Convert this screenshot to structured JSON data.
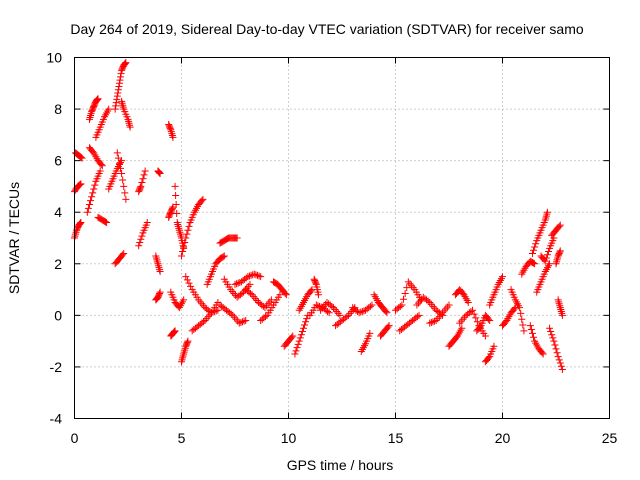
{
  "chart_data": {
    "type": "scatter",
    "title": "Day 264 of 2019, Sidereal Day-to-day VTEC variation (SDTVAR) for receiver samo",
    "xlabel": "GPS time / hours",
    "ylabel": "SDTVAR / TECUs",
    "xlim": [
      0,
      25
    ],
    "ylim": [
      -4,
      10
    ],
    "xticks": [
      0,
      5,
      10,
      15,
      20,
      25
    ],
    "yticks": [
      -4,
      -2,
      0,
      2,
      4,
      6,
      8,
      10
    ],
    "xtick_labels": [
      "0",
      "5",
      "10",
      "15",
      "20",
      "25"
    ],
    "ytick_labels": [
      "-4",
      "-2",
      "0",
      "2",
      "4",
      "6",
      "8",
      "10"
    ],
    "grid": true,
    "marker": "+",
    "color": "#ff0000",
    "series": [
      {
        "name": "SDTVAR",
        "segments": [
          {
            "x": [
              0.0,
              0.1,
              0.2,
              0.3
            ],
            "y": [
              3.0,
              3.3,
              3.5,
              3.6
            ]
          },
          {
            "x": [
              0.0,
              0.15,
              0.3
            ],
            "y": [
              4.8,
              5.0,
              5.1
            ]
          },
          {
            "x": [
              0.05,
              0.2,
              0.35
            ],
            "y": [
              6.3,
              6.2,
              6.1
            ]
          },
          {
            "x": [
              0.7,
              0.8,
              0.9,
              1.0,
              1.1
            ],
            "y": [
              7.6,
              7.9,
              8.1,
              8.3,
              8.4
            ]
          },
          {
            "x": [
              0.6,
              0.8,
              1.0,
              1.2
            ],
            "y": [
              4.0,
              4.6,
              5.2,
              5.6
            ]
          },
          {
            "x": [
              0.7,
              0.9,
              1.1,
              1.3
            ],
            "y": [
              6.5,
              6.3,
              6.0,
              5.8
            ]
          },
          {
            "x": [
              1.0,
              1.2,
              1.4,
              1.6
            ],
            "y": [
              6.9,
              7.3,
              7.7,
              8.0
            ]
          },
          {
            "x": [
              1.1,
              1.3,
              1.5
            ],
            "y": [
              3.8,
              3.7,
              3.6
            ]
          },
          {
            "x": [
              1.6,
              1.8,
              2.0,
              2.2
            ],
            "y": [
              4.9,
              5.3,
              5.7,
              6.0
            ]
          },
          {
            "x": [
              1.9,
              2.0,
              2.1,
              2.2,
              2.3,
              2.4
            ],
            "y": [
              8.0,
              8.5,
              9.0,
              9.5,
              9.7,
              9.8
            ]
          },
          {
            "x": [
              2.2,
              2.3,
              2.5,
              2.6
            ],
            "y": [
              8.3,
              8.0,
              7.6,
              7.3
            ]
          },
          {
            "x": [
              1.9,
              2.1,
              2.3
            ],
            "y": [
              2.0,
              2.2,
              2.4
            ]
          },
          {
            "x": [
              2.0,
              2.2,
              2.4
            ],
            "y": [
              6.3,
              5.5,
              4.5
            ]
          },
          {
            "x": [
              3.0,
              3.2,
              3.4
            ],
            "y": [
              2.7,
              3.2,
              3.6
            ]
          },
          {
            "x": [
              3.0,
              3.1,
              3.3
            ],
            "y": [
              4.8,
              5.0,
              5.6
            ]
          },
          {
            "x": [
              3.8,
              3.9,
              4.0
            ],
            "y": [
              2.3,
              2.0,
              1.7
            ]
          },
          {
            "x": [
              3.8,
              3.9,
              4.0
            ],
            "y": [
              0.6,
              0.7,
              0.9
            ]
          },
          {
            "x": [
              3.9,
              4.0
            ],
            "y": [
              5.6,
              5.5
            ]
          },
          {
            "x": [
              4.4,
              4.5,
              4.6
            ],
            "y": [
              7.4,
              7.2,
              6.9
            ]
          },
          {
            "x": [
              4.5,
              4.7,
              4.9,
              5.1
            ],
            "y": [
              0.9,
              0.5,
              0.3,
              0.6
            ]
          },
          {
            "x": [
              4.4,
              4.5,
              4.6
            ],
            "y": [
              3.8,
              4.0,
              4.2
            ]
          },
          {
            "x": [
              4.5,
              4.6,
              4.7
            ],
            "y": [
              -0.8,
              -0.7,
              -0.6
            ]
          },
          {
            "x": [
              4.7,
              4.8,
              4.9,
              5.0,
              5.1
            ],
            "y": [
              5.0,
              3.6,
              3.3,
              3.0,
              2.6
            ]
          },
          {
            "x": [
              5.0,
              5.2,
              5.4,
              5.6,
              5.8,
              6.0
            ],
            "y": [
              2.3,
              3.0,
              3.6,
              4.0,
              4.3,
              4.5
            ]
          },
          {
            "x": [
              5.0,
              5.1,
              5.2,
              5.3
            ],
            "y": [
              -1.8,
              -1.5,
              -1.2,
              -1.0
            ]
          },
          {
            "x": [
              5.2,
              5.5,
              5.8,
              6.1,
              6.4,
              6.7
            ],
            "y": [
              1.5,
              1.0,
              0.6,
              0.3,
              0.1,
              0.2
            ]
          },
          {
            "x": [
              5.5,
              5.8,
              6.1,
              6.4,
              6.7
            ],
            "y": [
              -0.6,
              -0.4,
              -0.2,
              0.1,
              0.5
            ]
          },
          {
            "x": [
              6.2,
              6.4,
              6.6,
              6.8,
              7.0
            ],
            "y": [
              1.2,
              1.6,
              2.0,
              2.2,
              2.3
            ]
          },
          {
            "x": [
              6.8,
              7.0,
              7.2,
              7.4,
              7.6
            ],
            "y": [
              2.8,
              2.9,
              3.0,
              3.0,
              3.0
            ]
          },
          {
            "x": [
              6.8,
              7.1,
              7.4,
              7.7,
              8.0
            ],
            "y": [
              0.4,
              0.2,
              0.0,
              -0.3,
              -0.2
            ]
          },
          {
            "x": [
              7.0,
              7.3,
              7.6,
              7.9,
              8.2
            ],
            "y": [
              1.4,
              1.0,
              0.7,
              0.9,
              1.2
            ]
          },
          {
            "x": [
              7.5,
              7.8,
              8.1,
              8.4,
              8.7
            ],
            "y": [
              1.2,
              1.3,
              1.5,
              1.6,
              1.5
            ]
          },
          {
            "x": [
              8.0,
              8.3,
              8.6,
              8.9,
              9.2
            ],
            "y": [
              1.0,
              0.8,
              0.5,
              0.3,
              0.6
            ]
          },
          {
            "x": [
              8.7,
              9.0,
              9.3,
              9.6
            ],
            "y": [
              -0.2,
              0.0,
              0.4,
              0.8
            ]
          },
          {
            "x": [
              9.3,
              9.5,
              9.7,
              9.9
            ],
            "y": [
              1.3,
              1.2,
              1.0,
              0.8
            ]
          },
          {
            "x": [
              9.8,
              10.0,
              10.2
            ],
            "y": [
              -1.2,
              -1.0,
              -0.8
            ]
          },
          {
            "x": [
              10.3,
              10.5,
              10.7,
              10.9
            ],
            "y": [
              -1.5,
              -1.0,
              -0.5,
              0.0
            ]
          },
          {
            "x": [
              10.5,
              10.7,
              10.9,
              11.1
            ],
            "y": [
              0.2,
              0.5,
              0.8,
              1.0
            ]
          },
          {
            "x": [
              11.0,
              11.3,
              11.6,
              11.9
            ],
            "y": [
              0.0,
              0.4,
              0.3,
              0.1
            ]
          },
          {
            "x": [
              11.2,
              11.3,
              11.4
            ],
            "y": [
              1.4,
              1.2,
              0.8
            ]
          },
          {
            "x": [
              11.5,
              11.8,
              12.1,
              12.4
            ],
            "y": [
              0.2,
              0.5,
              0.3,
              0.0
            ]
          },
          {
            "x": [
              12.2,
              12.5,
              12.8,
              13.1
            ],
            "y": [
              -0.4,
              -0.2,
              0.0,
              0.3
            ]
          },
          {
            "x": [
              13.0,
              13.3,
              13.6,
              13.9
            ],
            "y": [
              0.3,
              0.1,
              0.2,
              0.4
            ]
          },
          {
            "x": [
              13.4,
              13.6,
              13.8
            ],
            "y": [
              -1.4,
              -1.1,
              -0.7
            ]
          },
          {
            "x": [
              14.0,
              14.2,
              14.4,
              14.6
            ],
            "y": [
              0.8,
              0.5,
              0.3,
              0.1
            ]
          },
          {
            "x": [
              14.3,
              14.5,
              14.7
            ],
            "y": [
              -0.8,
              -0.6,
              -0.4
            ]
          },
          {
            "x": [
              15.0,
              15.3,
              15.6,
              15.9,
              16.2
            ],
            "y": [
              0.2,
              0.4,
              1.3,
              1.0,
              0.6
            ]
          },
          {
            "x": [
              15.2,
              15.5,
              15.8,
              16.1
            ],
            "y": [
              -0.6,
              -0.4,
              -0.2,
              0.0
            ]
          },
          {
            "x": [
              16.0,
              16.3,
              16.6,
              16.9,
              17.2
            ],
            "y": [
              0.4,
              0.7,
              0.5,
              0.2,
              0.0
            ]
          },
          {
            "x": [
              16.6,
              16.9,
              17.2,
              17.5
            ],
            "y": [
              -0.3,
              -0.2,
              0.1,
              0.4
            ]
          },
          {
            "x": [
              17.5,
              17.7,
              17.9,
              18.1
            ],
            "y": [
              -1.2,
              -1.0,
              -0.8,
              -0.5
            ]
          },
          {
            "x": [
              17.8,
              18.0,
              18.2,
              18.4
            ],
            "y": [
              0.8,
              1.0,
              0.8,
              0.5
            ]
          },
          {
            "x": [
              18.0,
              18.3,
              18.6,
              18.9,
              19.2
            ],
            "y": [
              -0.3,
              0.0,
              0.2,
              -0.4,
              -0.8
            ]
          },
          {
            "x": [
              18.8,
              19.0,
              19.2,
              19.4
            ],
            "y": [
              -0.6,
              -0.4,
              0.0,
              -0.2
            ]
          },
          {
            "x": [
              19.2,
              19.4,
              19.6
            ],
            "y": [
              -1.8,
              -1.6,
              -1.2
            ]
          },
          {
            "x": [
              19.4,
              19.6,
              19.8,
              20.0
            ],
            "y": [
              0.4,
              0.8,
              1.2,
              1.5
            ]
          },
          {
            "x": [
              20.0,
              20.2,
              20.4,
              20.6
            ],
            "y": [
              -0.4,
              -0.2,
              0.1,
              0.3
            ]
          },
          {
            "x": [
              20.4,
              20.6,
              20.8,
              21.0
            ],
            "y": [
              1.0,
              0.6,
              0.3,
              -0.6
            ]
          },
          {
            "x": [
              20.9,
              21.1,
              21.3,
              21.5
            ],
            "y": [
              1.6,
              1.9,
              2.1,
              2.0
            ]
          },
          {
            "x": [
              21.4,
              21.6,
              21.8,
              22.0,
              22.1
            ],
            "y": [
              2.4,
              2.9,
              3.3,
              3.7,
              4.0
            ]
          },
          {
            "x": [
              21.3,
              21.5,
              21.7,
              21.9
            ],
            "y": [
              -0.4,
              -1.0,
              -1.3,
              -1.5
            ]
          },
          {
            "x": [
              21.6,
              21.8,
              22.0,
              22.2
            ],
            "y": [
              0.9,
              1.3,
              1.7,
              2.0
            ]
          },
          {
            "x": [
              21.8,
              22.0,
              22.2,
              22.4
            ],
            "y": [
              2.3,
              2.1,
              2.6,
              3.0
            ]
          },
          {
            "x": [
              22.2,
              22.4,
              22.6,
              22.8
            ],
            "y": [
              -0.5,
              -1.0,
              -1.6,
              -2.1
            ]
          },
          {
            "x": [
              22.3,
              22.5,
              22.7
            ],
            "y": [
              3.1,
              3.3,
              3.5
            ]
          },
          {
            "x": [
              22.5,
              22.6,
              22.7
            ],
            "y": [
              2.0,
              2.3,
              2.5
            ]
          },
          {
            "x": [
              22.6,
              22.7,
              22.8
            ],
            "y": [
              0.6,
              0.3,
              0.0
            ]
          }
        ]
      }
    ]
  }
}
